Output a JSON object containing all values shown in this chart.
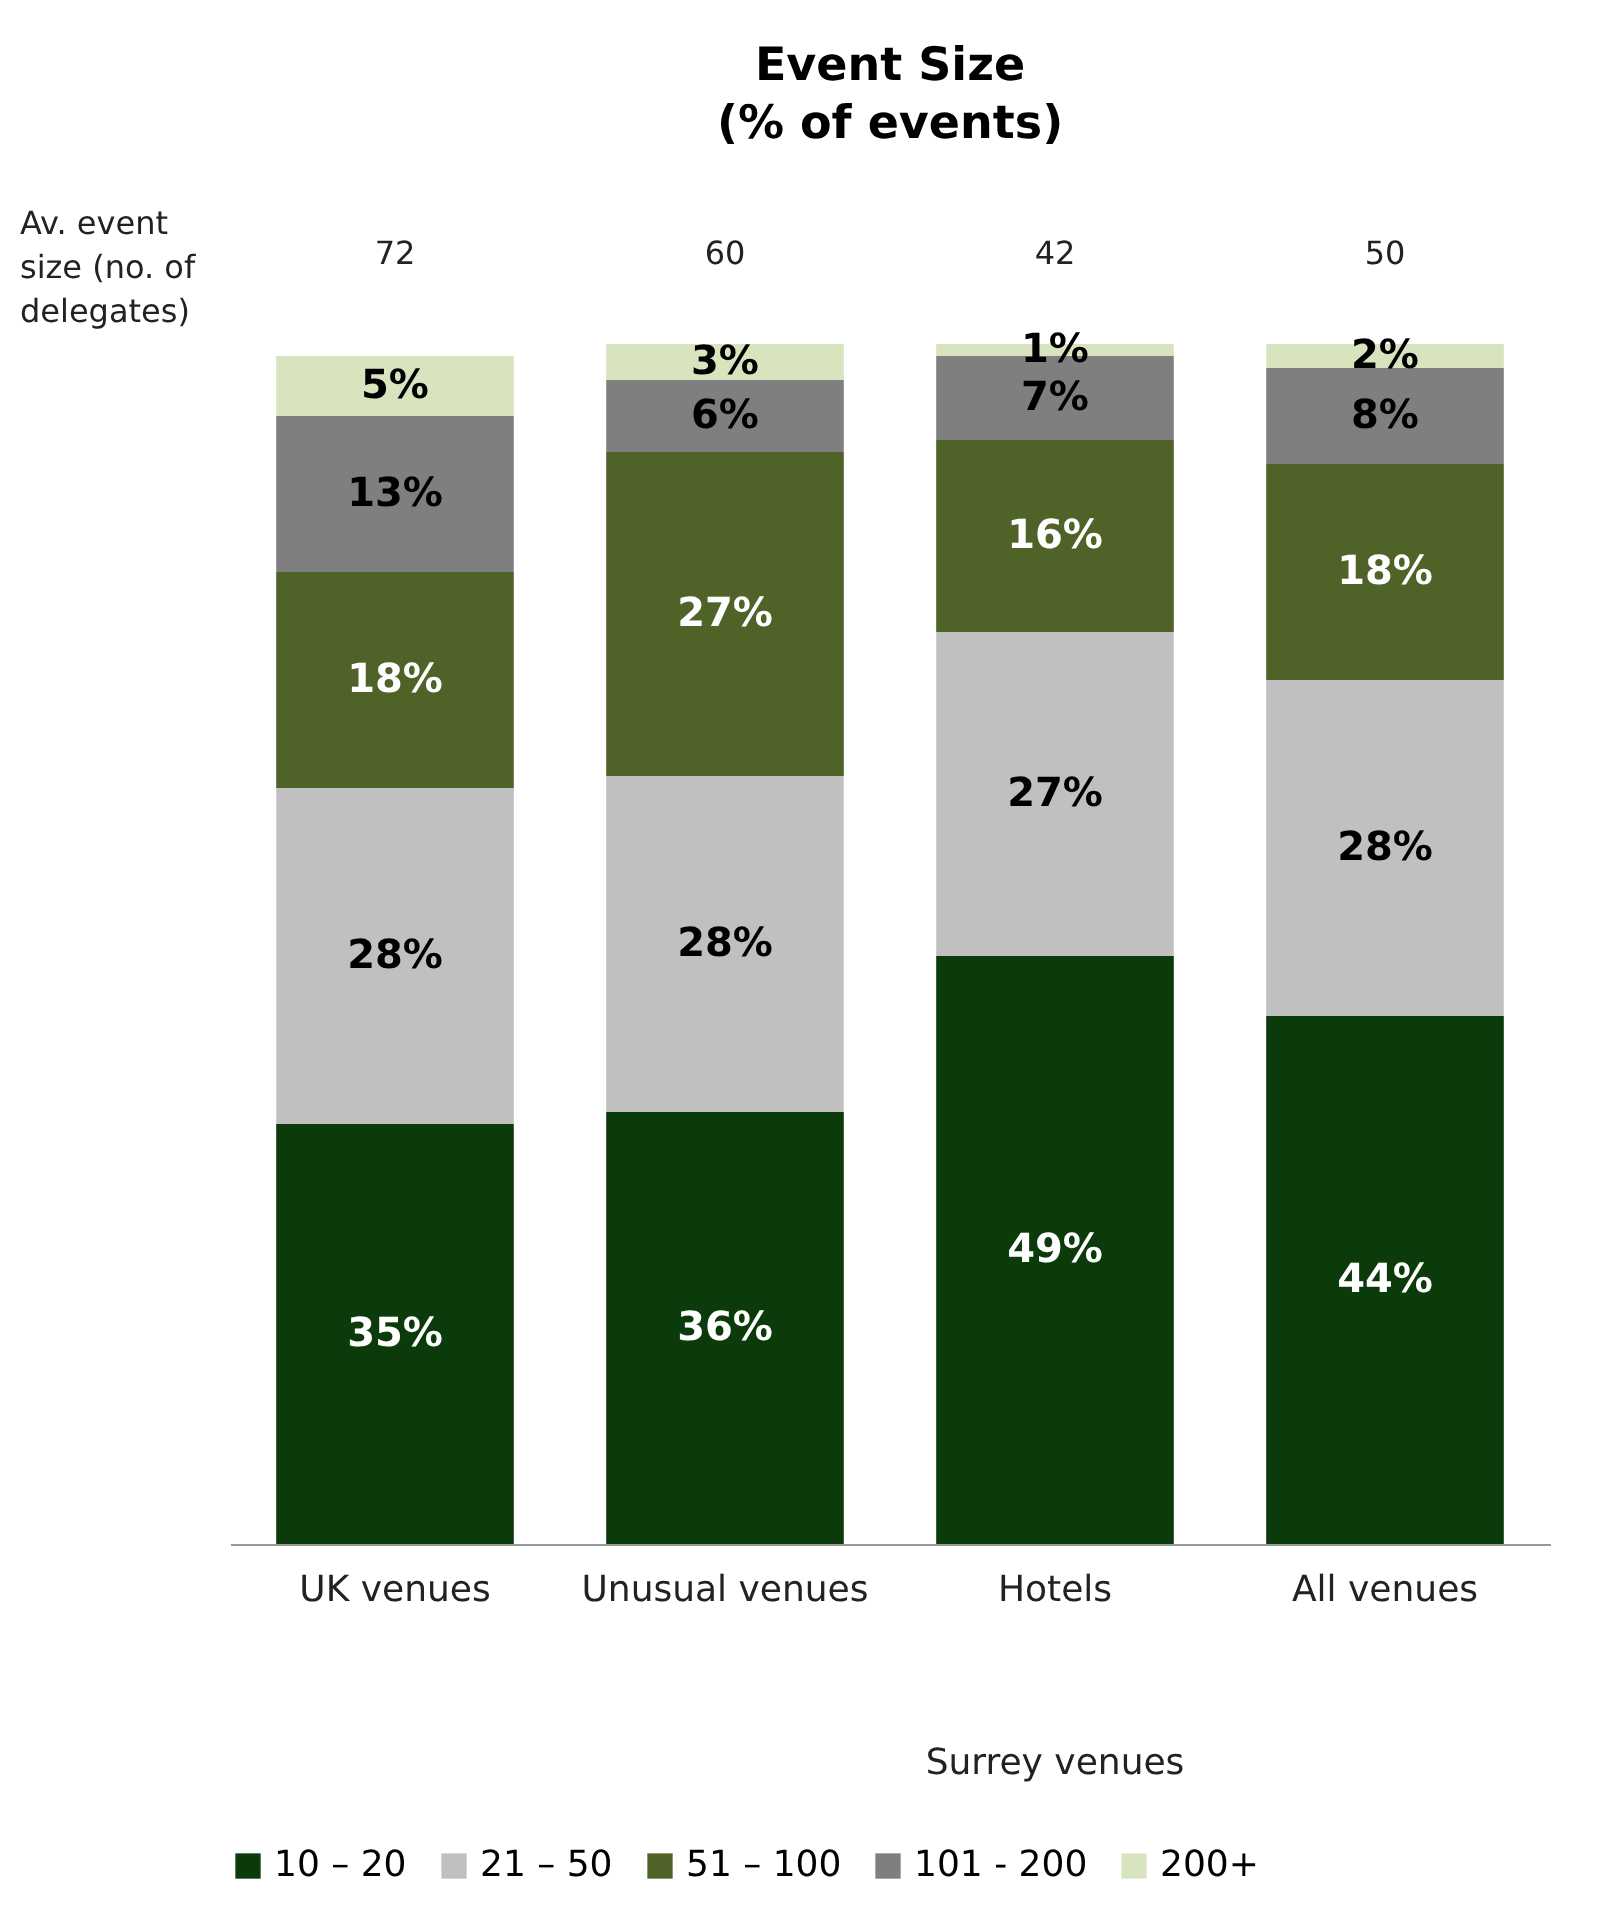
{
  "chart_data": {
    "type": "bar",
    "stacked": true,
    "title": "Event Size",
    "subtitle": "(% of events)",
    "categories": [
      "UK venues",
      "Unusual venues",
      "Hotels",
      "All venues"
    ],
    "series": [
      {
        "name": "10 – 20",
        "color": "#0b3a0b",
        "values": [
          35,
          36,
          49,
          44
        ],
        "value_labels": [
          "35%",
          "36%",
          "49%",
          "44%"
        ]
      },
      {
        "name": "21 – 50",
        "color": "#c0c0c0",
        "values": [
          28,
          28,
          27,
          28
        ],
        "value_labels": [
          "28%",
          "28%",
          "27%",
          "28%"
        ]
      },
      {
        "name": "51 – 100",
        "color": "#4f6228",
        "values": [
          18,
          27,
          16,
          18
        ],
        "value_labels": [
          "18%",
          "27%",
          "16%",
          "18%"
        ]
      },
      {
        "name": "101 - 200",
        "color": "#7f7f7f",
        "values": [
          13,
          6,
          7,
          8
        ],
        "value_labels": [
          "13%",
          "6%",
          "7%",
          "8%"
        ]
      },
      {
        "name": "200+",
        "color": "#d7e4bd",
        "values": [
          5,
          3,
          1,
          2
        ],
        "value_labels": [
          "5%",
          "3%",
          "1%",
          "2%"
        ]
      }
    ],
    "annotations": [
      "Av. event size (no. of delegates)",
      "Surrey venues",
      "72",
      "60",
      "42",
      "50"
    ],
    "legend": "bottom",
    "grid": false
  }
}
